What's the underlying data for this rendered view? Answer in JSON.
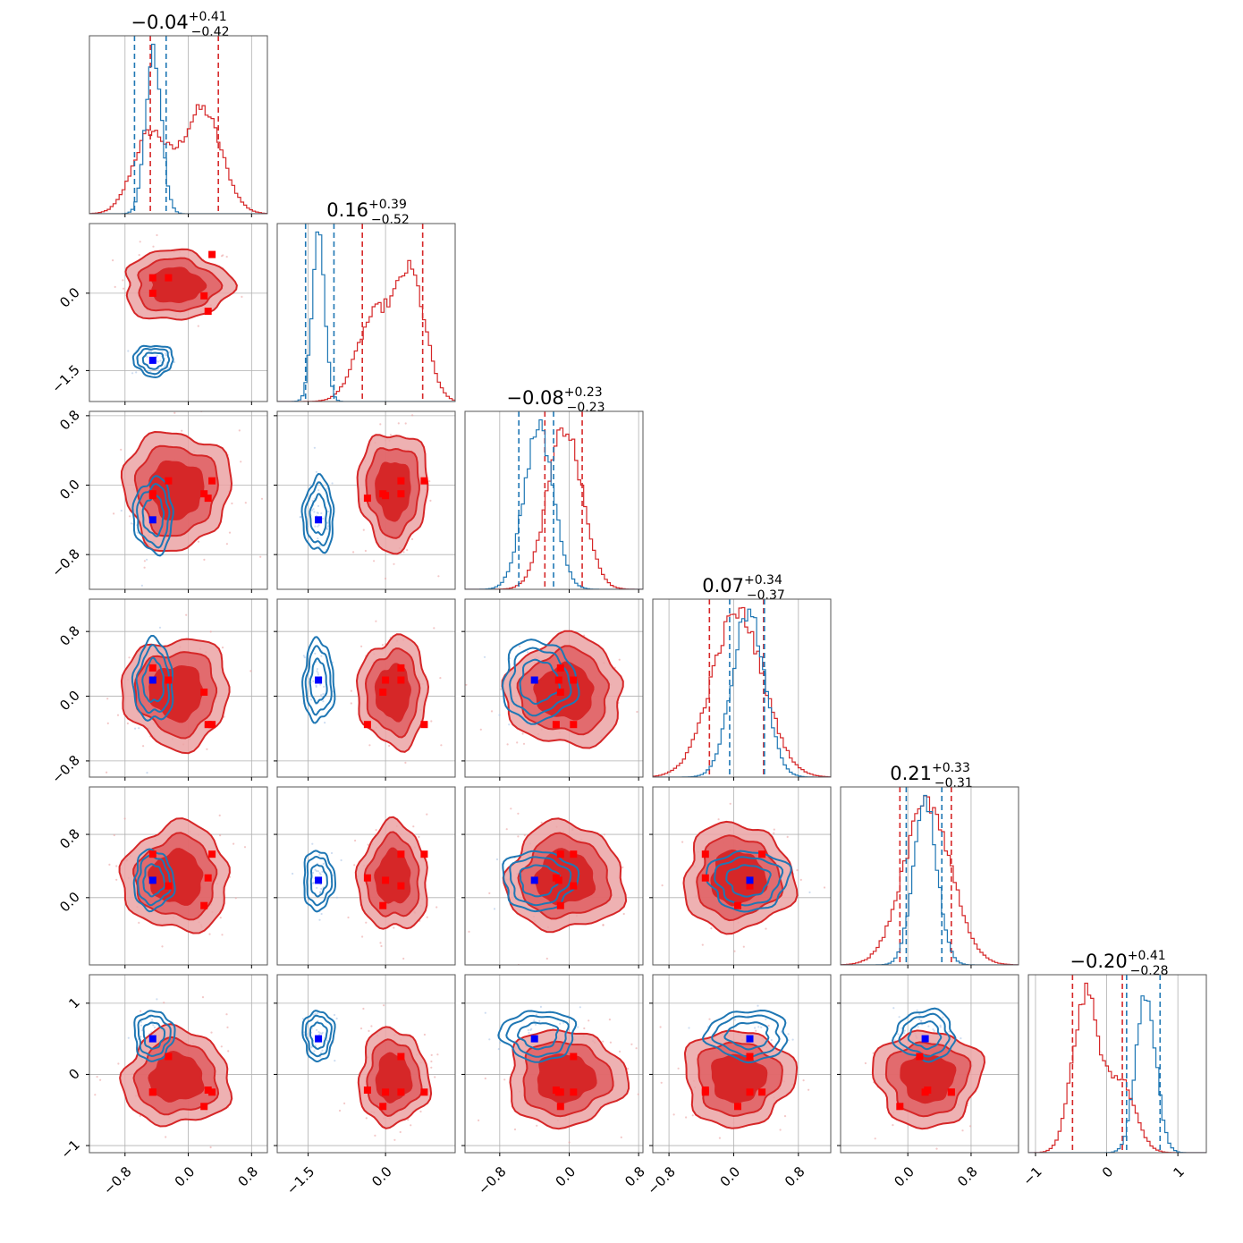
{
  "chart_data": {
    "type": "corner",
    "n_params": 6,
    "colors": {
      "red": "#d62728",
      "red_light": "#eba3a4",
      "red_mid": "#e06466",
      "blue": "#1f77b4",
      "blue_pale": "#aec7e8",
      "marker_red": "#ff0000",
      "marker_blue": "#0000ff"
    },
    "params": [
      {
        "range": [
          -1.25,
          1.0
        ],
        "ticks": [
          -0.8,
          0.0,
          0.8
        ],
        "tick_labels": [
          "−0.8",
          "0.0",
          "0.8"
        ],
        "show_x_labels": true,
        "show_y_labels": false,
        "title": {
          "main": "−0.04",
          "plus": "+0.41",
          "minus": "−0.42"
        }
      },
      {
        "range": [
          -2.1,
          1.35
        ],
        "ticks": [
          -1.5,
          0.0
        ],
        "tick_labels": [
          "−1.5",
          "0.0"
        ],
        "show_x_labels": true,
        "show_y_labels": true,
        "title": {
          "main": "0.16",
          "plus": "+0.39",
          "minus": "−0.52"
        }
      },
      {
        "range": [
          -1.2,
          0.85
        ],
        "ticks": [
          -0.8,
          0.0,
          0.8
        ],
        "tick_labels": [
          "−0.8",
          "0.0",
          "0.8"
        ],
        "show_x_labels": true,
        "show_y_labels": true,
        "title": {
          "main": "−0.08",
          "plus": "+0.23",
          "minus": "−0.23"
        }
      },
      {
        "range": [
          -1.0,
          1.2
        ],
        "ticks": [
          -0.8,
          0.0,
          0.8
        ],
        "tick_labels": [
          "−0.8",
          "0.0",
          "0.8"
        ],
        "show_x_labels": true,
        "show_y_labels": true,
        "title": {
          "main": "0.07",
          "plus": "+0.34",
          "minus": "−0.37"
        }
      },
      {
        "range": [
          -0.85,
          1.4
        ],
        "ticks": [
          0.0,
          0.8
        ],
        "tick_labels": [
          "0.0",
          "0.8"
        ],
        "show_x_labels": true,
        "show_y_labels": true,
        "title": {
          "main": "0.21",
          "plus": "+0.33",
          "minus": "−0.31"
        }
      },
      {
        "range": [
          -1.1,
          1.4
        ],
        "ticks": [
          -1,
          0,
          1
        ],
        "tick_labels": [
          "−1",
          "0",
          "1"
        ],
        "show_x_labels": true,
        "show_y_labels": true,
        "title": {
          "main": "−0.20",
          "plus": "+0.41",
          "minus": "−0.28"
        }
      }
    ],
    "marginals": [
      {
        "red": {
          "modes": [
            {
              "mu": -0.48,
              "sd": 0.22,
              "w": 0.5
            },
            {
              "mu": 0.18,
              "sd": 0.24,
              "w": 0.65
            }
          ],
          "quantiles": [
            -0.48,
            0.38
          ]
        },
        "blue": {
          "modes": [
            {
              "mu": -0.44,
              "sd": 0.1,
              "w": 1.0
            }
          ],
          "quantiles": [
            -0.68,
            -0.28
          ]
        }
      },
      {
        "red": {
          "modes": [
            {
              "mu": -0.2,
              "sd": 0.35,
              "w": 0.5
            },
            {
              "mu": 0.5,
              "sd": 0.28,
              "w": 0.7
            }
          ],
          "quantiles": [
            -0.45,
            0.72
          ]
        },
        "blue": {
          "modes": [
            {
              "mu": -1.3,
              "sd": 0.12,
              "w": 1.0
            }
          ],
          "quantiles": [
            -1.55,
            -1.0
          ]
        }
      },
      {
        "red": {
          "modes": [
            {
              "mu": -0.05,
              "sd": 0.2,
              "w": 1.0
            }
          ],
          "quantiles": [
            -0.28,
            0.15
          ]
        },
        "blue": {
          "modes": [
            {
              "mu": -0.35,
              "sd": 0.17,
              "w": 1.0
            }
          ],
          "quantiles": [
            -0.58,
            -0.18
          ]
        }
      },
      {
        "red": {
          "modes": [
            {
              "mu": 0.05,
              "sd": 0.32,
              "w": 1.0
            }
          ],
          "quantiles": [
            -0.3,
            0.37
          ]
        },
        "blue": {
          "modes": [
            {
              "mu": 0.18,
              "sd": 0.2,
              "w": 1.0
            }
          ],
          "quantiles": [
            -0.05,
            0.38
          ]
        }
      },
      {
        "red": {
          "modes": [
            {
              "mu": 0.25,
              "sd": 0.3,
              "w": 1.0
            }
          ],
          "quantiles": [
            -0.1,
            0.55
          ]
        },
        "blue": {
          "modes": [
            {
              "mu": 0.22,
              "sd": 0.15,
              "w": 1.0
            }
          ],
          "quantiles": [
            -0.02,
            0.43
          ]
        }
      },
      {
        "red": {
          "modes": [
            {
              "mu": -0.3,
              "sd": 0.18,
              "w": 1.0
            },
            {
              "mu": 0.2,
              "sd": 0.2,
              "w": 0.45
            }
          ],
          "quantiles": [
            -0.48,
            0.22
          ]
        },
        "blue": {
          "modes": [
            {
              "mu": 0.55,
              "sd": 0.14,
              "w": 1.0
            }
          ],
          "quantiles": [
            0.28,
            0.75
          ]
        }
      }
    ],
    "red_points": [
      [
        -0.45,
        0.3,
        -0.1,
        0.35,
        0.55,
        -0.25
      ],
      [
        -0.25,
        0.3,
        0.05,
        0.2,
        0.15,
        0.25
      ],
      [
        0.2,
        -0.05,
        -0.1,
        0.05,
        -0.1,
        -0.45
      ],
      [
        0.25,
        -0.35,
        -0.15,
        -0.35,
        0.25,
        -0.22
      ],
      [
        -0.45,
        0.0,
        -0.12,
        0.2,
        0.22,
        -0.25
      ],
      [
        0.3,
        0.75,
        0.05,
        -0.35,
        0.55,
        -0.25
      ]
    ],
    "blue_points": [
      [
        -0.45,
        -1.3,
        -0.4,
        0.2,
        0.22,
        0.5
      ]
    ]
  }
}
